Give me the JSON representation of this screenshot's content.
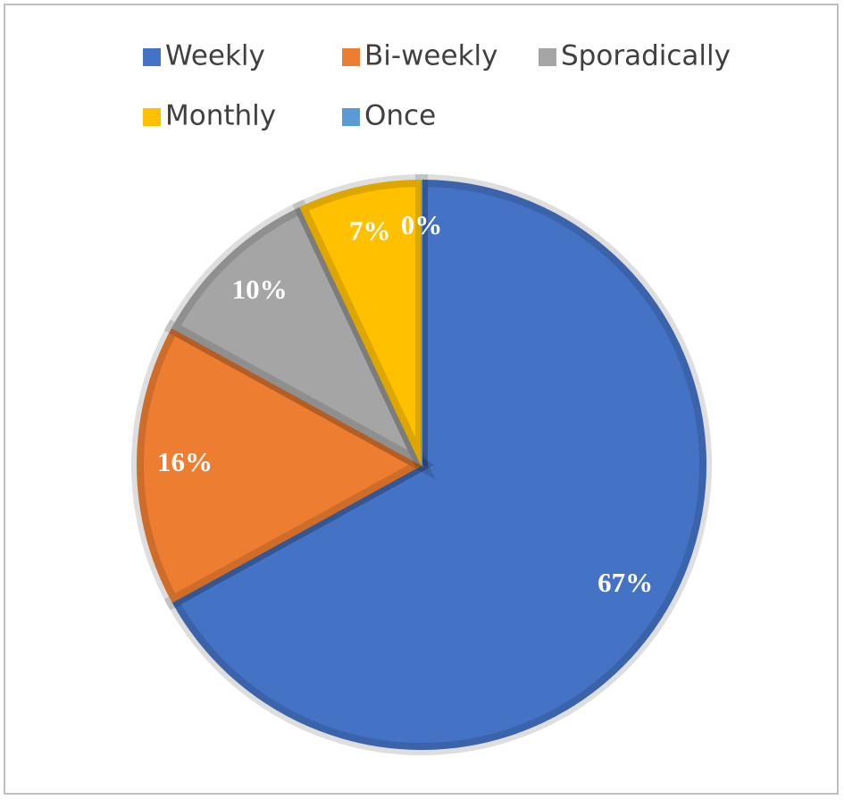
{
  "chart_data": {
    "type": "pie",
    "categories": [
      "Weekly",
      "Bi-weekly",
      "Sporadically",
      "Monthly",
      "Once"
    ],
    "values": [
      67,
      16,
      10,
      7,
      0
    ],
    "value_labels": [
      "67%",
      "16%",
      "10%",
      "7%",
      "0%"
    ],
    "colors": [
      "#4472c4",
      "#ed7d31",
      "#a5a5a5",
      "#ffc000",
      "#5b9bd5"
    ],
    "legend": "top"
  }
}
